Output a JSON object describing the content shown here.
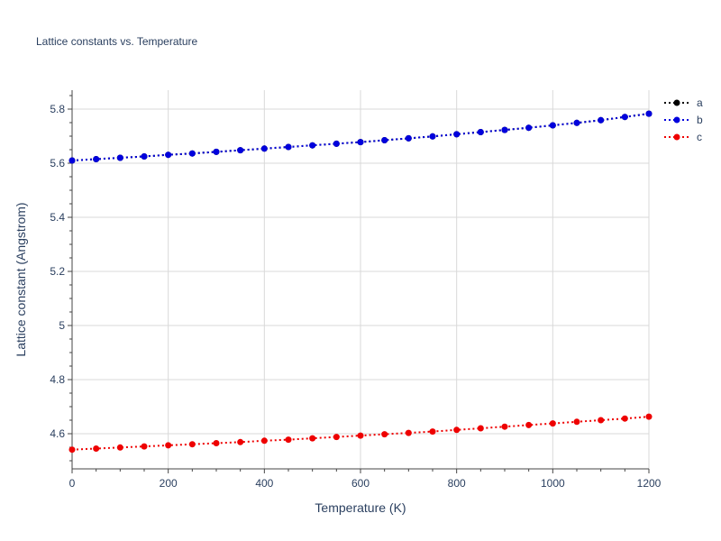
{
  "chart_data": {
    "type": "line",
    "title": "Lattice constants vs. Temperature",
    "xlabel": "Temperature (K)",
    "ylabel": "Lattice constant (Angstrom)",
    "xlim": [
      0,
      1200
    ],
    "ylim": [
      4.47,
      5.87
    ],
    "xticks": [
      0,
      200,
      400,
      600,
      800,
      1000,
      1200
    ],
    "xtick_labels": [
      "0",
      "200",
      "400",
      "600",
      "800",
      "1000",
      "1200"
    ],
    "yticks": [
      4.6,
      4.8,
      5.0,
      5.2,
      5.4,
      5.6,
      5.8
    ],
    "ytick_labels": [
      "4.6",
      "4.8",
      "5",
      "5.2",
      "5.4",
      "5.6",
      "5.8"
    ],
    "grid": true,
    "legend_position": "top-right",
    "line_style": "dotted",
    "x": [
      0,
      50,
      100,
      150,
      200,
      250,
      300,
      350,
      400,
      450,
      500,
      550,
      600,
      650,
      700,
      750,
      800,
      850,
      900,
      950,
      1000,
      1050,
      1100,
      1150,
      1200
    ],
    "series": [
      {
        "name": "a",
        "color": "#000000",
        "values": [
          5.61,
          5.615,
          5.62,
          5.625,
          5.631,
          5.636,
          5.642,
          5.648,
          5.654,
          5.66,
          5.666,
          5.672,
          5.678,
          5.685,
          5.692,
          5.699,
          5.707,
          5.715,
          5.723,
          5.731,
          5.74,
          5.749,
          5.759,
          5.771,
          5.783
        ]
      },
      {
        "name": "b",
        "color": "#0000dd",
        "values": [
          5.61,
          5.615,
          5.62,
          5.625,
          5.631,
          5.636,
          5.642,
          5.648,
          5.654,
          5.66,
          5.666,
          5.672,
          5.678,
          5.685,
          5.692,
          5.699,
          5.707,
          5.715,
          5.723,
          5.731,
          5.74,
          5.749,
          5.759,
          5.771,
          5.783
        ]
      },
      {
        "name": "c",
        "color": "#ee0000",
        "values": [
          4.541,
          4.545,
          4.549,
          4.553,
          4.557,
          4.561,
          4.565,
          4.569,
          4.574,
          4.578,
          4.583,
          4.588,
          4.593,
          4.598,
          4.603,
          4.608,
          4.614,
          4.62,
          4.626,
          4.632,
          4.638,
          4.644,
          4.65,
          4.656,
          4.663
        ]
      }
    ]
  }
}
